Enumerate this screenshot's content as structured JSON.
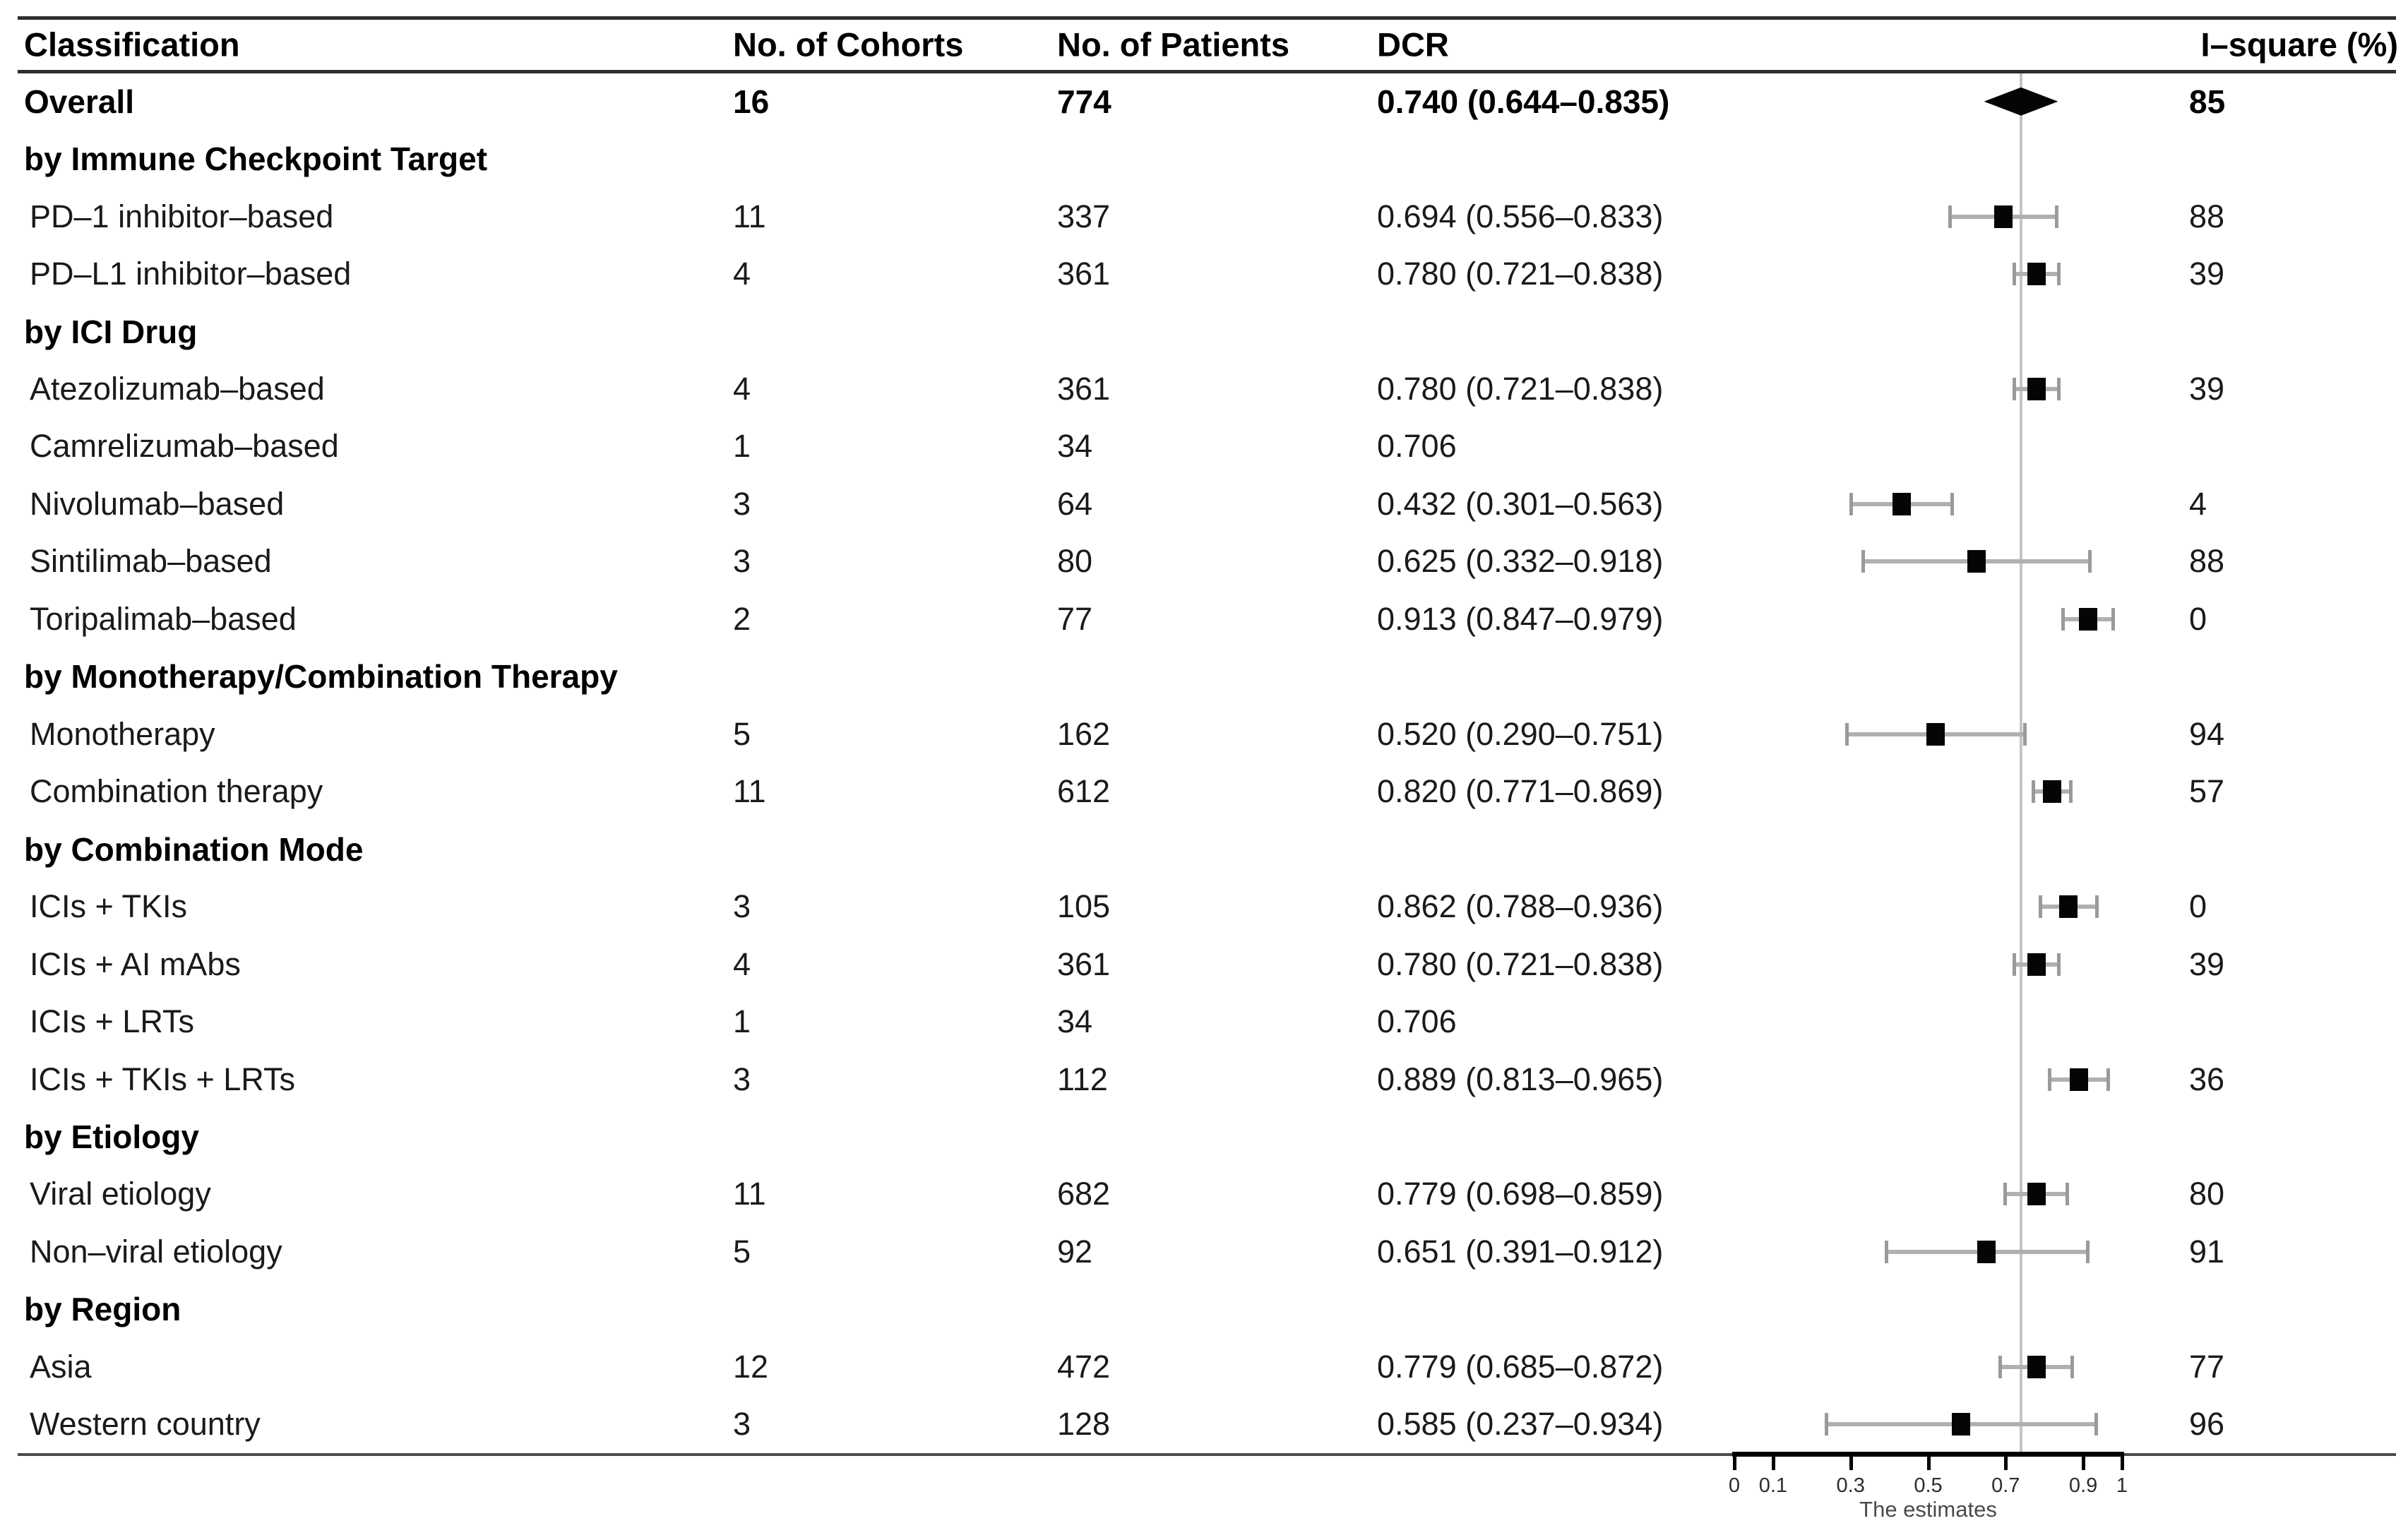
{
  "figure": {
    "columns": {
      "classification": "Classification",
      "cohorts": "No. of Cohorts",
      "patients": "No. of Patients",
      "dcr": "DCR",
      "isquare": "I–square (%)"
    },
    "rows": [
      {
        "type": "overall",
        "label": "Overall",
        "cohorts": "16",
        "patients": "774",
        "dcr": "0.740 (0.644–0.835)",
        "isquare": "85",
        "est": 0.74,
        "lo": 0.644,
        "hi": 0.835,
        "marker": "diamond"
      },
      {
        "type": "section",
        "label": "by Immune Checkpoint Target"
      },
      {
        "type": "data",
        "label": "PD–1 inhibitor–based",
        "cohorts": "11",
        "patients": "337",
        "dcr": "0.694 (0.556–0.833)",
        "isquare": "88",
        "est": 0.694,
        "lo": 0.556,
        "hi": 0.833,
        "marker": "square"
      },
      {
        "type": "data",
        "label": "PD–L1 inhibitor–based",
        "cohorts": "4",
        "patients": "361",
        "dcr": "0.780 (0.721–0.838)",
        "isquare": "39",
        "est": 0.78,
        "lo": 0.721,
        "hi": 0.838,
        "marker": "square"
      },
      {
        "type": "section",
        "label": "by ICI Drug"
      },
      {
        "type": "data",
        "label": "Atezolizumab–based",
        "cohorts": "4",
        "patients": "361",
        "dcr": "0.780 (0.721–0.838)",
        "isquare": "39",
        "est": 0.78,
        "lo": 0.721,
        "hi": 0.838,
        "marker": "square"
      },
      {
        "type": "data",
        "label": "Camrelizumab–based",
        "cohorts": "1",
        "patients": "34",
        "dcr": "0.706",
        "isquare": "",
        "est": 0.706,
        "lo": null,
        "hi": null,
        "marker": "none"
      },
      {
        "type": "data",
        "label": "Nivolumab–based",
        "cohorts": "3",
        "patients": "64",
        "dcr": "0.432 (0.301–0.563)",
        "isquare": "4",
        "est": 0.432,
        "lo": 0.301,
        "hi": 0.563,
        "marker": "square"
      },
      {
        "type": "data",
        "label": "Sintilimab–based",
        "cohorts": "3",
        "patients": "80",
        "dcr": "0.625 (0.332–0.918)",
        "isquare": "88",
        "est": 0.625,
        "lo": 0.332,
        "hi": 0.918,
        "marker": "square"
      },
      {
        "type": "data",
        "label": "Toripalimab–based",
        "cohorts": "2",
        "patients": "77",
        "dcr": "0.913 (0.847–0.979)",
        "isquare": "0",
        "est": 0.913,
        "lo": 0.847,
        "hi": 0.979,
        "marker": "square"
      },
      {
        "type": "section",
        "label": "by Monotherapy/Combination Therapy"
      },
      {
        "type": "data",
        "label": "Monotherapy",
        "cohorts": "5",
        "patients": "162",
        "dcr": "0.520 (0.290–0.751)",
        "isquare": "94",
        "est": 0.52,
        "lo": 0.29,
        "hi": 0.751,
        "marker": "square"
      },
      {
        "type": "data",
        "label": "Combination therapy",
        "cohorts": "11",
        "patients": "612",
        "dcr": "0.820 (0.771–0.869)",
        "isquare": "57",
        "est": 0.82,
        "lo": 0.771,
        "hi": 0.869,
        "marker": "square"
      },
      {
        "type": "section",
        "label": "by Combination Mode"
      },
      {
        "type": "data",
        "label": "ICIs + TKIs",
        "cohorts": "3",
        "patients": "105",
        "dcr": "0.862 (0.788–0.936)",
        "isquare": "0",
        "est": 0.862,
        "lo": 0.788,
        "hi": 0.936,
        "marker": "square"
      },
      {
        "type": "data",
        "label": "ICIs + AI mAbs",
        "cohorts": "4",
        "patients": "361",
        "dcr": "0.780 (0.721–0.838)",
        "isquare": "39",
        "est": 0.78,
        "lo": 0.721,
        "hi": 0.838,
        "marker": "square"
      },
      {
        "type": "data",
        "label": "ICIs + LRTs",
        "cohorts": "1",
        "patients": "34",
        "dcr": "0.706",
        "isquare": "",
        "est": 0.706,
        "lo": null,
        "hi": null,
        "marker": "none"
      },
      {
        "type": "data",
        "label": "ICIs + TKIs + LRTs",
        "cohorts": "3",
        "patients": "112",
        "dcr": "0.889 (0.813–0.965)",
        "isquare": "36",
        "est": 0.889,
        "lo": 0.813,
        "hi": 0.965,
        "marker": "square"
      },
      {
        "type": "section",
        "label": "by Etiology"
      },
      {
        "type": "data",
        "label": "Viral etiology",
        "cohorts": "11",
        "patients": "682",
        "dcr": "0.779 (0.698–0.859)",
        "isquare": "80",
        "est": 0.779,
        "lo": 0.698,
        "hi": 0.859,
        "marker": "square"
      },
      {
        "type": "data",
        "label": "Non–viral etiology",
        "cohorts": "5",
        "patients": "92",
        "dcr": "0.651 (0.391–0.912)",
        "isquare": "91",
        "est": 0.651,
        "lo": 0.391,
        "hi": 0.912,
        "marker": "square"
      },
      {
        "type": "section",
        "label": "by Region"
      },
      {
        "type": "data",
        "label": "Asia",
        "cohorts": "12",
        "patients": "472",
        "dcr": "0.779 (0.685–0.872)",
        "isquare": "77",
        "est": 0.779,
        "lo": 0.685,
        "hi": 0.872,
        "marker": "square"
      },
      {
        "type": "data",
        "label": "Western country",
        "cohorts": "3",
        "patients": "128",
        "dcr": "0.585 (0.237–0.934)",
        "isquare": "96",
        "est": 0.585,
        "lo": 0.237,
        "hi": 0.934,
        "marker": "square"
      }
    ],
    "axis": {
      "tick_values": [
        0,
        0.1,
        0.3,
        0.5,
        0.7,
        0.9,
        1
      ],
      "tick_labels": [
        "0",
        "0.1",
        "0.3",
        "0.5",
        "0.7",
        "0.9",
        "1"
      ],
      "xlabel": "The estimates",
      "min": 0,
      "max": 1,
      "reference_line": 0.74
    },
    "colors": {
      "marker": "#050505",
      "ci_bar": "#b0b0b0",
      "ci_cap": "#9a9a9a",
      "reference_line": "#c4c4c4",
      "rule": "#2e2e2e"
    }
  },
  "chart_data": {
    "type": "forest",
    "xlabel": "The estimates",
    "xlim": [
      0,
      1
    ],
    "x_ticks": [
      0,
      0.1,
      0.3,
      0.5,
      0.7,
      0.9,
      1
    ],
    "reference_line": 0.74,
    "overall": {
      "label": "Overall",
      "cohorts": 16,
      "patients": 774,
      "est": 0.74,
      "lo": 0.644,
      "hi": 0.835,
      "isquare": 85
    },
    "groups": [
      "by Immune Checkpoint Target",
      "by ICI Drug",
      "by Monotherapy/Combination Therapy",
      "by Combination Mode",
      "by Etiology",
      "by Region"
    ],
    "points": [
      {
        "group": "by Immune Checkpoint Target",
        "label": "PD–1 inhibitor–based",
        "cohorts": 11,
        "patients": 337,
        "est": 0.694,
        "lo": 0.556,
        "hi": 0.833,
        "isquare": 88
      },
      {
        "group": "by Immune Checkpoint Target",
        "label": "PD–L1 inhibitor–based",
        "cohorts": 4,
        "patients": 361,
        "est": 0.78,
        "lo": 0.721,
        "hi": 0.838,
        "isquare": 39
      },
      {
        "group": "by ICI Drug",
        "label": "Atezolizumab–based",
        "cohorts": 4,
        "patients": 361,
        "est": 0.78,
        "lo": 0.721,
        "hi": 0.838,
        "isquare": 39
      },
      {
        "group": "by ICI Drug",
        "label": "Camrelizumab–based",
        "cohorts": 1,
        "patients": 34,
        "est": 0.706,
        "lo": null,
        "hi": null,
        "isquare": null
      },
      {
        "group": "by ICI Drug",
        "label": "Nivolumab–based",
        "cohorts": 3,
        "patients": 64,
        "est": 0.432,
        "lo": 0.301,
        "hi": 0.563,
        "isquare": 4
      },
      {
        "group": "by ICI Drug",
        "label": "Sintilimab–based",
        "cohorts": 3,
        "patients": 80,
        "est": 0.625,
        "lo": 0.332,
        "hi": 0.918,
        "isquare": 88
      },
      {
        "group": "by ICI Drug",
        "label": "Toripalimab–based",
        "cohorts": 2,
        "patients": 77,
        "est": 0.913,
        "lo": 0.847,
        "hi": 0.979,
        "isquare": 0
      },
      {
        "group": "by Monotherapy/Combination Therapy",
        "label": "Monotherapy",
        "cohorts": 5,
        "patients": 162,
        "est": 0.52,
        "lo": 0.29,
        "hi": 0.751,
        "isquare": 94
      },
      {
        "group": "by Monotherapy/Combination Therapy",
        "label": "Combination therapy",
        "cohorts": 11,
        "patients": 612,
        "est": 0.82,
        "lo": 0.771,
        "hi": 0.869,
        "isquare": 57
      },
      {
        "group": "by Combination Mode",
        "label": "ICIs + TKIs",
        "cohorts": 3,
        "patients": 105,
        "est": 0.862,
        "lo": 0.788,
        "hi": 0.936,
        "isquare": 0
      },
      {
        "group": "by Combination Mode",
        "label": "ICIs + AI mAbs",
        "cohorts": 4,
        "patients": 361,
        "est": 0.78,
        "lo": 0.721,
        "hi": 0.838,
        "isquare": 39
      },
      {
        "group": "by Combination Mode",
        "label": "ICIs + LRTs",
        "cohorts": 1,
        "patients": 34,
        "est": 0.706,
        "lo": null,
        "hi": null,
        "isquare": null
      },
      {
        "group": "by Combination Mode",
        "label": "ICIs + TKIs + LRTs",
        "cohorts": 3,
        "patients": 112,
        "est": 0.889,
        "lo": 0.813,
        "hi": 0.965,
        "isquare": 36
      },
      {
        "group": "by Etiology",
        "label": "Viral etiology",
        "cohorts": 11,
        "patients": 682,
        "est": 0.779,
        "lo": 0.698,
        "hi": 0.859,
        "isquare": 80
      },
      {
        "group": "by Etiology",
        "label": "Non–viral etiology",
        "cohorts": 5,
        "patients": 92,
        "est": 0.651,
        "lo": 0.391,
        "hi": 0.912,
        "isquare": 91
      },
      {
        "group": "by Region",
        "label": "Asia",
        "cohorts": 12,
        "patients": 472,
        "est": 0.779,
        "lo": 0.685,
        "hi": 0.872,
        "isquare": 77
      },
      {
        "group": "by Region",
        "label": "Western country",
        "cohorts": 3,
        "patients": 128,
        "est": 0.585,
        "lo": 0.237,
        "hi": 0.934,
        "isquare": 96
      }
    ]
  }
}
